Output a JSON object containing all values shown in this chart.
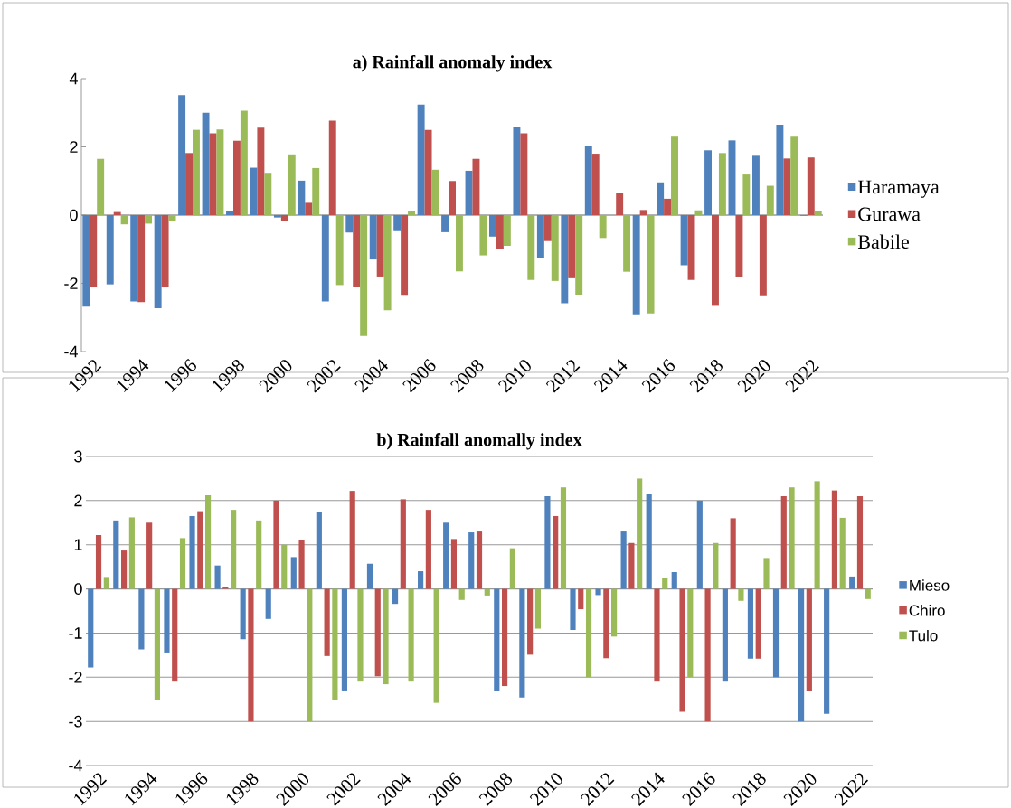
{
  "chart_data": [
    {
      "type": "bar",
      "title": "a) Rainfall anomaly index",
      "categories": [
        "1992",
        null,
        "1994",
        null,
        "1996",
        null,
        "1998",
        null,
        "2000",
        null,
        "2002",
        null,
        "2004",
        null,
        "2006",
        null,
        "2008",
        null,
        "2010",
        null,
        "2012",
        null,
        "2014",
        null,
        "2016",
        null,
        "2018",
        null,
        "2020",
        null,
        "2022"
      ],
      "series": [
        {
          "name": "Haramaya",
          "color": "#4f81bd",
          "values": [
            -2.68,
            -2.03,
            -2.53,
            -2.73,
            3.52,
            3.0,
            0.11,
            1.39,
            -0.07,
            1.01,
            -2.53,
            -0.51,
            -1.3,
            -0.47,
            3.24,
            -0.5,
            1.3,
            -0.63,
            2.57,
            -1.27,
            -2.58,
            2.02,
            0,
            -2.91,
            0.96,
            -1.47,
            1.9,
            2.19,
            1.74,
            2.65,
            -0.02
          ]
        },
        {
          "name": "Gurawa",
          "color": "#c0504d",
          "values": [
            -2.12,
            0.09,
            -2.55,
            -2.12,
            1.82,
            2.4,
            2.18,
            2.56,
            -0.16,
            0.36,
            2.77,
            -2.1,
            -1.8,
            -2.34,
            2.5,
            1.0,
            1.65,
            -1.0,
            2.4,
            -0.76,
            -1.85,
            1.8,
            0.64,
            0.15,
            0.48,
            -1.9,
            -2.66,
            -1.82,
            -2.35,
            1.66,
            1.69
          ]
        },
        {
          "name": "Babile",
          "color": "#9bbb59",
          "values": [
            1.65,
            -0.27,
            -0.25,
            -0.16,
            2.5,
            2.51,
            3.06,
            1.24,
            1.78,
            1.38,
            -2.05,
            -3.54,
            -2.79,
            0.12,
            1.33,
            -1.65,
            -1.18,
            -0.9,
            -1.9,
            -1.93,
            -2.33,
            -0.67,
            -1.66,
            -2.88,
            2.3,
            0.14,
            1.82,
            1.19,
            0.86,
            2.3,
            0.12
          ]
        }
      ],
      "ylim": [
        -4,
        4
      ],
      "yticks": [
        -4,
        -2,
        0,
        2,
        4
      ],
      "legend": "right"
    },
    {
      "type": "bar",
      "title": "b) Rainfall anomally index",
      "categories": [
        "1992",
        null,
        "1994",
        null,
        "1996",
        null,
        "1998",
        null,
        "2000",
        null,
        "2002",
        null,
        "2004",
        null,
        "2006",
        null,
        "2008",
        null,
        "2010",
        null,
        "2012",
        null,
        "2014",
        null,
        "2016",
        null,
        "2018",
        null,
        "2020",
        null,
        "2022"
      ],
      "series": [
        {
          "name": "Mieso",
          "color": "#4f81bd",
          "values": [
            -1.78,
            1.55,
            -1.37,
            -1.44,
            1.65,
            0.53,
            -1.14,
            -0.68,
            0.72,
            1.75,
            -2.3,
            0.57,
            -0.34,
            0.4,
            1.5,
            1.28,
            -2.31,
            -2.46,
            2.1,
            -0.93,
            -0.14,
            1.3,
            2.14,
            0.38,
            2.0,
            -2.1,
            -1.58,
            -2.0,
            -3.0,
            -2.83,
            0.28
          ]
        },
        {
          "name": "Chiro",
          "color": "#c0504d",
          "values": [
            1.22,
            0.87,
            1.5,
            -2.1,
            1.76,
            0.04,
            -3.0,
            2.0,
            1.1,
            -1.52,
            2.22,
            -1.98,
            2.03,
            1.79,
            1.13,
            1.3,
            -2.2,
            -1.49,
            1.65,
            -0.46,
            -1.57,
            1.04,
            -2.1,
            -2.78,
            -3.0,
            1.6,
            -1.58,
            2.1,
            -2.32,
            2.23,
            2.1
          ]
        },
        {
          "name": "Tulo",
          "color": "#9bbb59",
          "values": [
            0.27,
            1.62,
            -2.51,
            1.15,
            2.12,
            1.79,
            1.55,
            1.0,
            -3.0,
            -2.51,
            -2.1,
            -2.16,
            -2.1,
            -2.58,
            -0.25,
            -0.15,
            0.92,
            -0.9,
            2.3,
            -2.0,
            -1.08,
            2.5,
            0.24,
            -2.0,
            1.04,
            -0.27,
            0.7,
            2.3,
            2.44,
            1.61,
            -0.23
          ]
        }
      ],
      "ylim": [
        -4,
        3
      ],
      "yticks": [
        -4,
        -3,
        -2,
        -1,
        0,
        1,
        2,
        3
      ],
      "grid": "y",
      "legend": "right"
    }
  ]
}
